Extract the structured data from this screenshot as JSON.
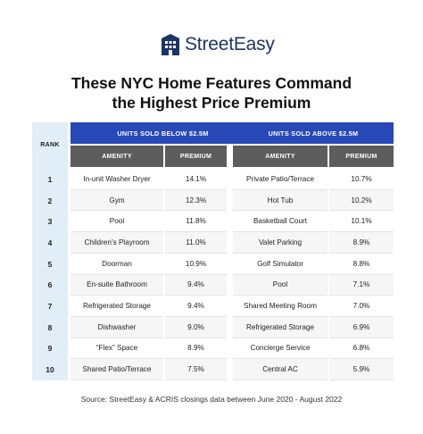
{
  "brand": {
    "name": "StreetEasy",
    "icon": "building-icon",
    "color": "#1b3566"
  },
  "title_line1": "These NYC Home Features Command",
  "title_line2": "the Highest Price Premium",
  "table": {
    "rank_header": "RANK",
    "below": {
      "header": "UNITS SOLD BELOW $2.5M",
      "col_amenity": "AMENITY",
      "col_premium": "PREMIUM"
    },
    "above": {
      "header": "UNITS SOLD ABOVE $2.5M",
      "col_amenity": "AMENITY",
      "col_premium": "PREMIUM"
    },
    "rows": [
      {
        "rank": "1",
        "below_amenity": "In-unit Washer Dryer",
        "below_premium": "14.1%",
        "above_amenity": "Private Patio/Terrace",
        "above_premium": "10.7%"
      },
      {
        "rank": "2",
        "below_amenity": "Gym",
        "below_premium": "12.3%",
        "above_amenity": "Hot Tub",
        "above_premium": "10.2%"
      },
      {
        "rank": "3",
        "below_amenity": "Pool",
        "below_premium": "11.8%",
        "above_amenity": "Basketball Court",
        "above_premium": "10.1%"
      },
      {
        "rank": "4",
        "below_amenity": "Children’s Playroom",
        "below_premium": "11.0%",
        "above_amenity": "Valet Parking",
        "above_premium": "8.9%"
      },
      {
        "rank": "5",
        "below_amenity": "Doorman",
        "below_premium": "10.9%",
        "above_amenity": "Golf Simulator",
        "above_premium": "8.8%"
      },
      {
        "rank": "6",
        "below_amenity": "En-suite Bathroom",
        "below_premium": "9.4%",
        "above_amenity": "Pool",
        "above_premium": "7.1%"
      },
      {
        "rank": "7",
        "below_amenity": "Refrigerated Storage",
        "below_premium": "9.4%",
        "above_amenity": "Shared Meeting Room",
        "above_premium": "7.0%"
      },
      {
        "rank": "8",
        "below_amenity": "Dishwasher",
        "below_premium": "9.0%",
        "above_amenity": "Refrigerated Storage",
        "above_premium": "6.9%"
      },
      {
        "rank": "9",
        "below_amenity": "“Flex” Space",
        "below_premium": "8.9%",
        "above_amenity": "Concierge Service",
        "above_premium": "6.8%"
      },
      {
        "rank": "10",
        "below_amenity": "Shared Patio/Terrace",
        "below_premium": "7.5%",
        "above_amenity": "Central AC",
        "above_premium": "5.9%"
      }
    ]
  },
  "source": "Source: StreetEasy & ACRIS closings data between June 2020 - August 2022",
  "colors": {
    "header_blue": "#2849b8",
    "subheader_gray": "#5d5d5d",
    "rank_bg": "#e1eef8"
  }
}
